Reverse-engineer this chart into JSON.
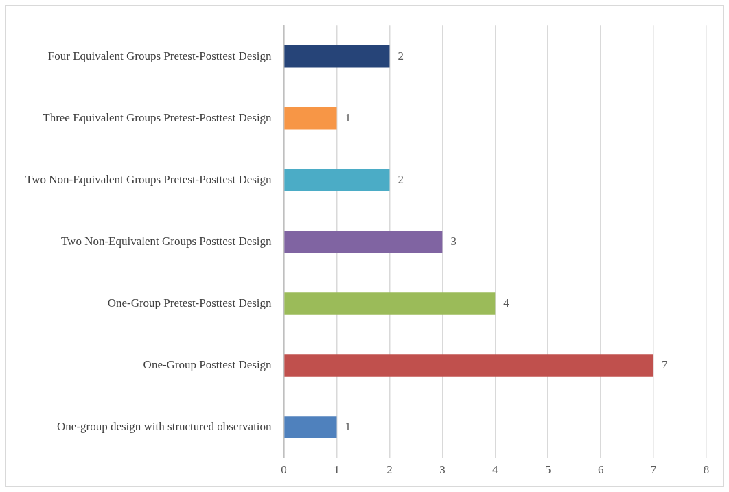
{
  "chart_data": {
    "type": "bar",
    "orientation": "horizontal",
    "categories": [
      "Four Equivalent Groups Pretest-Posttest Design",
      "Three Equivalent Groups Pretest-Posttest Design",
      "Two Non-Equivalent Groups Pretest-Posttest Design",
      "Two Non-Equivalent Groups Posttest Design",
      "One-Group Pretest-Posttest Design",
      "One-Group Posttest Design",
      "One-group design with structured observation"
    ],
    "values": [
      2,
      1,
      2,
      3,
      4,
      7,
      1
    ],
    "colors": [
      "#264478",
      "#f79646",
      "#4bacc6",
      "#8064a2",
      "#9bbb59",
      "#c0504d",
      "#4f81bd"
    ],
    "xlim": [
      0,
      8
    ],
    "xticks": [
      0,
      1,
      2,
      3,
      4,
      5,
      6,
      7,
      8
    ],
    "grid": "x",
    "data_labels": true,
    "legend": false
  }
}
